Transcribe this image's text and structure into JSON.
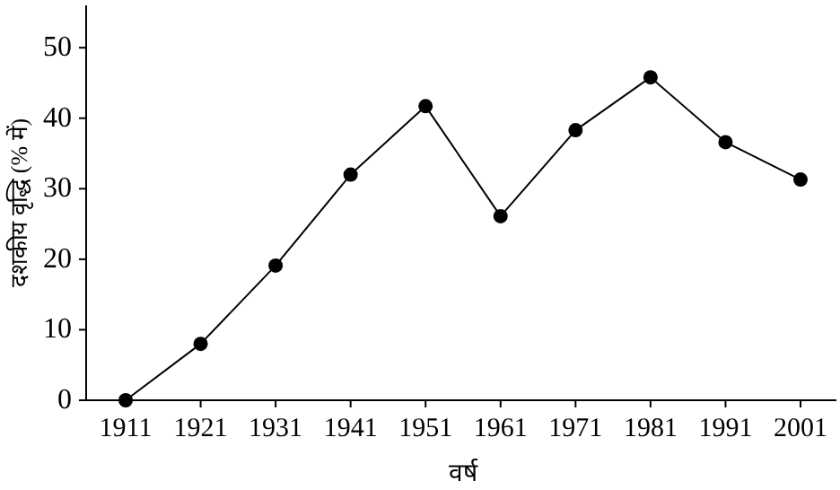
{
  "chart_data": {
    "type": "line",
    "xlabel": "वर्ष",
    "ylabel": "दशकीय वृद्धि (% में)",
    "categories": [
      "1911",
      "1921",
      "1931",
      "1941",
      "1951",
      "1961",
      "1971",
      "1981",
      "1991",
      "2001"
    ],
    "series": [
      {
        "color": "#000000",
        "values": [
          0,
          8,
          19.1,
          32,
          41.7,
          26.1,
          38.3,
          45.8,
          36.6,
          31.3
        ]
      }
    ],
    "ylim": [
      0,
      56
    ],
    "yticks": [
      0,
      10,
      20,
      30,
      40,
      50
    ],
    "marker": "circle",
    "line_style": "solid",
    "grid": false
  }
}
